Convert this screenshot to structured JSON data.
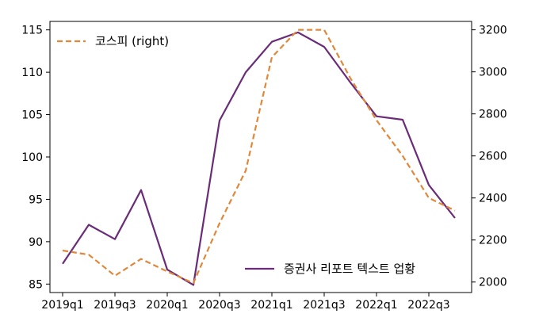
{
  "chart_data": {
    "type": "line",
    "categories": [
      "2019q1",
      "2019q2",
      "2019q3",
      "2019q4",
      "2020q1",
      "2020q2",
      "2020q3",
      "2020q4",
      "2021q1",
      "2021q2",
      "2021q3",
      "2021q4",
      "2022q1",
      "2022q2",
      "2022q3",
      "2022q4"
    ],
    "x_tick_labels": [
      "2019q1",
      "2019q3",
      "2020q1",
      "2020q3",
      "2021q1",
      "2021q3",
      "2022q1",
      "2022q3"
    ],
    "y_left": {
      "ylim": [
        84,
        116
      ],
      "ticks": [
        "85",
        "90",
        "95",
        "100",
        "105",
        "110",
        "115"
      ]
    },
    "y_right": {
      "ylim": [
        1950,
        3240
      ],
      "ticks": [
        "2000",
        "2200",
        "2400",
        "2600",
        "2800",
        "3000",
        "3200"
      ]
    },
    "series": [
      {
        "name": "증권사 리포트 텍스트 업황",
        "axis": "left",
        "color": "#6a2c78",
        "style": "solid",
        "legend_position": "bottom-right",
        "values": [
          87.4,
          92.0,
          90.3,
          96.1,
          86.7,
          84.9,
          104.3,
          110.0,
          113.6,
          114.7,
          113.0,
          108.8,
          104.8,
          104.4,
          96.7,
          92.8
        ]
      },
      {
        "name": "코스피 (right)",
        "axis": "right",
        "color": "#e0883a",
        "style": "dashed",
        "legend_position": "top-left",
        "values": [
          2150,
          2130,
          2030,
          2110,
          2050,
          1995,
          2280,
          2530,
          3070,
          3200,
          3200,
          2970,
          2770,
          2600,
          2400,
          2340
        ]
      }
    ],
    "grid": false
  }
}
